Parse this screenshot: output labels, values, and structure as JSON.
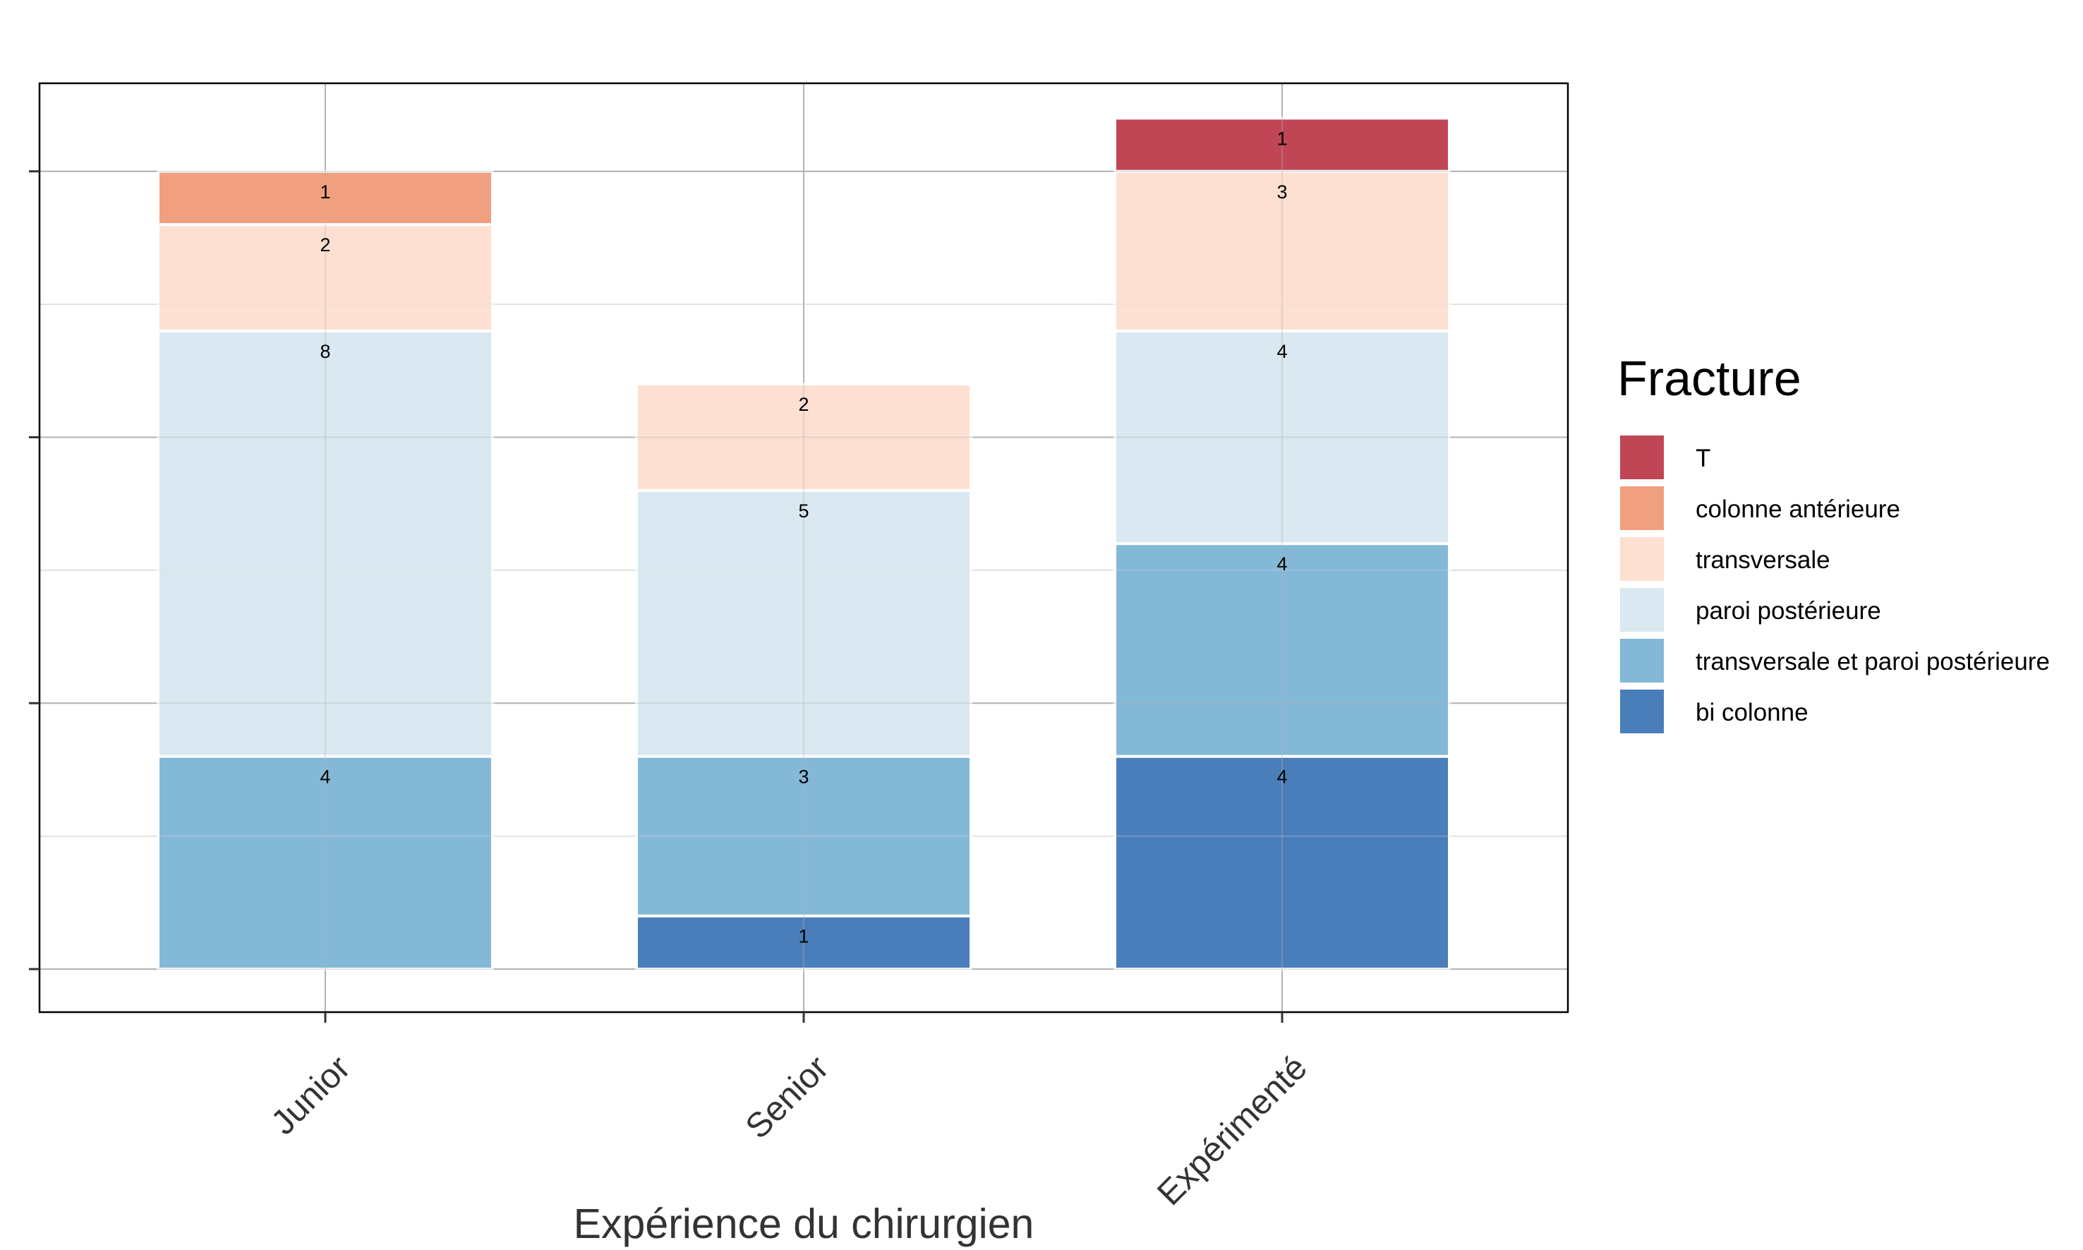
{
  "chart_data": {
    "type": "bar",
    "stacked": true,
    "categories": [
      "Junior",
      "Senior",
      "Expérimenté"
    ],
    "xlabel": "Expérience du chirurgien",
    "ylabel": "",
    "ylim": [
      0,
      16.6
    ],
    "y_ticks": [
      0,
      5,
      10,
      15
    ],
    "y_tick_labels_visible": false,
    "grid": true,
    "legend": {
      "title": "Fracture",
      "position": "right"
    },
    "series": [
      {
        "name": "bi colonne",
        "color": "#4A7EBA",
        "values": [
          0,
          1,
          4
        ]
      },
      {
        "name": "transversale et paroi postérieure",
        "color": "#83B8D7",
        "values": [
          4,
          3,
          4
        ]
      },
      {
        "name": "paroi postérieure",
        "color": "#D9E8F1",
        "values": [
          8,
          5,
          4
        ]
      },
      {
        "name": "transversale",
        "color": "#FDE0D2",
        "values": [
          2,
          2,
          3
        ]
      },
      {
        "name": "colonne antérieure",
        "color": "#F1A07F",
        "values": [
          1,
          0,
          0
        ]
      },
      {
        "name": "T",
        "color": "#C14655",
        "values": [
          0,
          0,
          1
        ]
      }
    ],
    "legend_order": [
      "T",
      "colonne antérieure",
      "transversale",
      "paroi postérieure",
      "transversale et paroi postérieure",
      "bi colonne"
    ]
  }
}
